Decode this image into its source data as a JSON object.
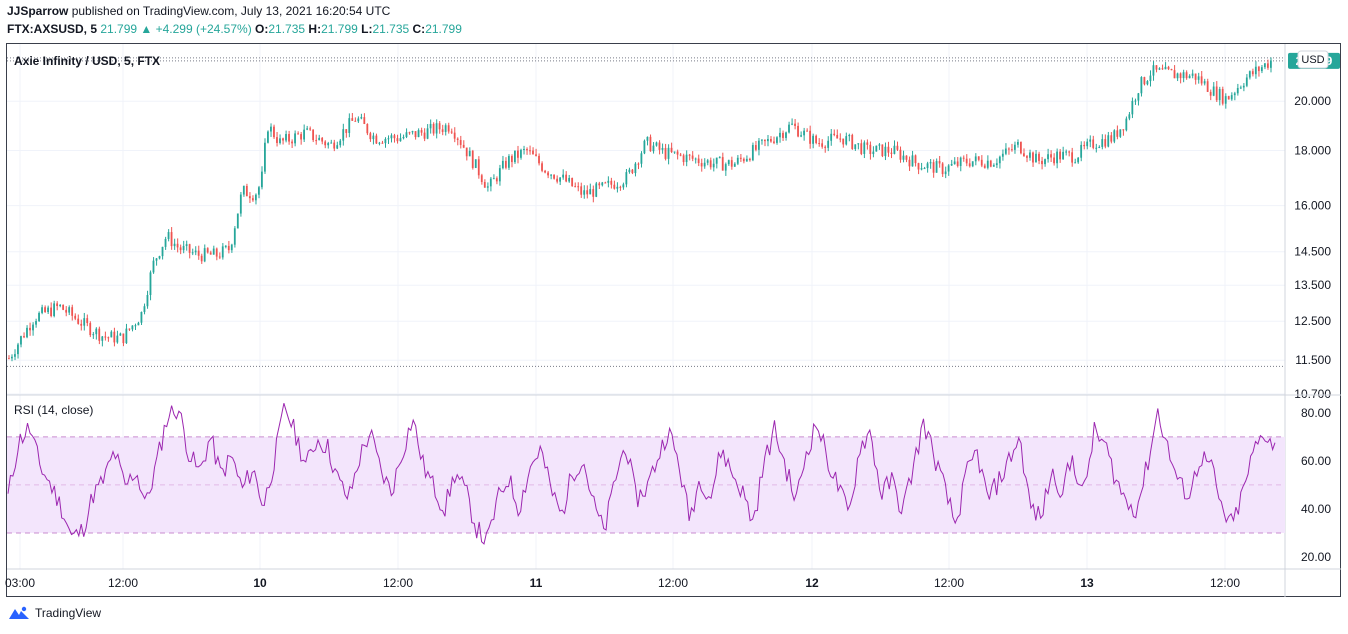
{
  "header": {
    "publisher": "JJSparrow",
    "published_text": "published on TradingView.com, July 13, 2021 16:20:54 UTC",
    "symbol": "FTX:AXSUSD, 5",
    "last": "21.799",
    "change": "▲ +4.299 (+24.57%)",
    "o_label": "O:",
    "o": "21.735",
    "h_label": "H:",
    "h": "21.799",
    "l_label": "L:",
    "l": "21.735",
    "c_label": "C:",
    "c": "21.799"
  },
  "footer": {
    "brand": "TradingView"
  },
  "colors": {
    "up": "#26a69a",
    "down": "#ef5350",
    "rsi_line": "#9c27b0",
    "rsi_band": "#f3e5fc",
    "grid": "#f0f3fa",
    "text": "#131722"
  },
  "chart_data": [
    {
      "type": "candlestick",
      "title": "Axie Infinity / USD, 5, FTX",
      "currency_label": "USD",
      "scale": "log",
      "ylim": [
        10.7,
        22.6
      ],
      "y_ticks": [
        "10.700",
        "11.500",
        "12.500",
        "13.500",
        "14.500",
        "16.000",
        "18.000",
        "20.000"
      ],
      "last_price_label": "21.799",
      "high_marker": 21.8,
      "low_marker": 11.35,
      "x_ticks": [
        "03:00",
        "12:00",
        "10",
        "12:00",
        "11",
        "12:00",
        "12",
        "12:00",
        "13",
        "12:00"
      ],
      "close_path": [
        {
          "t": 0,
          "v": 11.55
        },
        {
          "t": 0.02,
          "v": 12.6
        },
        {
          "t": 0.04,
          "v": 12.9
        },
        {
          "t": 0.06,
          "v": 12.4
        },
        {
          "t": 0.075,
          "v": 12.1
        },
        {
          "t": 0.09,
          "v": 12.05
        },
        {
          "t": 0.105,
          "v": 12.7
        },
        {
          "t": 0.115,
          "v": 14.2
        },
        {
          "t": 0.125,
          "v": 15.0
        },
        {
          "t": 0.135,
          "v": 14.6
        },
        {
          "t": 0.15,
          "v": 14.4
        },
        {
          "t": 0.165,
          "v": 14.4
        },
        {
          "t": 0.175,
          "v": 14.6
        },
        {
          "t": 0.185,
          "v": 16.5
        },
        {
          "t": 0.195,
          "v": 16.4
        },
        {
          "t": 0.2,
          "v": 16.8
        },
        {
          "t": 0.205,
          "v": 19.0
        },
        {
          "t": 0.215,
          "v": 18.3
        },
        {
          "t": 0.235,
          "v": 18.7
        },
        {
          "t": 0.255,
          "v": 18.2
        },
        {
          "t": 0.275,
          "v": 19.3
        },
        {
          "t": 0.29,
          "v": 18.5
        },
        {
          "t": 0.31,
          "v": 18.5
        },
        {
          "t": 0.335,
          "v": 18.8
        },
        {
          "t": 0.35,
          "v": 19.0
        },
        {
          "t": 0.365,
          "v": 17.8
        },
        {
          "t": 0.38,
          "v": 16.6
        },
        {
          "t": 0.395,
          "v": 17.6
        },
        {
          "t": 0.41,
          "v": 18.0
        },
        {
          "t": 0.425,
          "v": 17.3
        },
        {
          "t": 0.44,
          "v": 16.9
        },
        {
          "t": 0.455,
          "v": 16.4
        },
        {
          "t": 0.47,
          "v": 16.6
        },
        {
          "t": 0.49,
          "v": 17.0
        },
        {
          "t": 0.505,
          "v": 18.3
        },
        {
          "t": 0.52,
          "v": 17.9
        },
        {
          "t": 0.54,
          "v": 17.7
        },
        {
          "t": 0.56,
          "v": 17.5
        },
        {
          "t": 0.575,
          "v": 17.5
        },
        {
          "t": 0.6,
          "v": 18.3
        },
        {
          "t": 0.62,
          "v": 19.0
        },
        {
          "t": 0.64,
          "v": 18.3
        },
        {
          "t": 0.66,
          "v": 18.5
        },
        {
          "t": 0.68,
          "v": 18.0
        },
        {
          "t": 0.7,
          "v": 18.0
        },
        {
          "t": 0.72,
          "v": 17.5
        },
        {
          "t": 0.74,
          "v": 17.3
        },
        {
          "t": 0.76,
          "v": 17.6
        },
        {
          "t": 0.78,
          "v": 17.6
        },
        {
          "t": 0.8,
          "v": 18.2
        },
        {
          "t": 0.815,
          "v": 17.6
        },
        {
          "t": 0.83,
          "v": 17.8
        },
        {
          "t": 0.845,
          "v": 17.8
        },
        {
          "t": 0.86,
          "v": 18.3
        },
        {
          "t": 0.875,
          "v": 18.5
        },
        {
          "t": 0.885,
          "v": 19.2
        },
        {
          "t": 0.895,
          "v": 20.6
        },
        {
          "t": 0.905,
          "v": 21.3
        },
        {
          "t": 0.92,
          "v": 21.2
        },
        {
          "t": 0.94,
          "v": 21.1
        },
        {
          "t": 0.955,
          "v": 20.4
        },
        {
          "t": 0.965,
          "v": 20.1
        },
        {
          "t": 0.98,
          "v": 21.0
        },
        {
          "t": 1.0,
          "v": 21.8
        }
      ]
    },
    {
      "type": "line",
      "title": "RSI (14, close)",
      "ylim": [
        15,
        87
      ],
      "y_ticks": [
        "20.00",
        "40.00",
        "60.00",
        "80.00"
      ],
      "bands": [
        30,
        50,
        70
      ],
      "series": [
        {
          "values": [
            45,
            68,
            74,
            58,
            50,
            41,
            28,
            31,
            46,
            52,
            64,
            49,
            56,
            42,
            60,
            79,
            82,
            63,
            55,
            70,
            54,
            62,
            48,
            57,
            41,
            60,
            83,
            71,
            58,
            69,
            66,
            52,
            44,
            61,
            72,
            56,
            47,
            63,
            78,
            58,
            49,
            40,
            55,
            47,
            32,
            26,
            44,
            53,
            40,
            57,
            65,
            48,
            37,
            55,
            61,
            42,
            30,
            52,
            67,
            44,
            49,
            61,
            73,
            59,
            36,
            53,
            45,
            65,
            55,
            47,
            34,
            59,
            73,
            58,
            43,
            64,
            76,
            60,
            49,
            37,
            66,
            72,
            46,
            52,
            39,
            57,
            76,
            62,
            48,
            33,
            54,
            64,
            44,
            51,
            60,
            70,
            41,
            36,
            55,
            48,
            61,
            45,
            72,
            67,
            53,
            43,
            40,
            58,
            81,
            64,
            50,
            46,
            62,
            58,
            39,
            33,
            47,
            64,
            72,
            66
          ]
        }
      ]
    }
  ]
}
